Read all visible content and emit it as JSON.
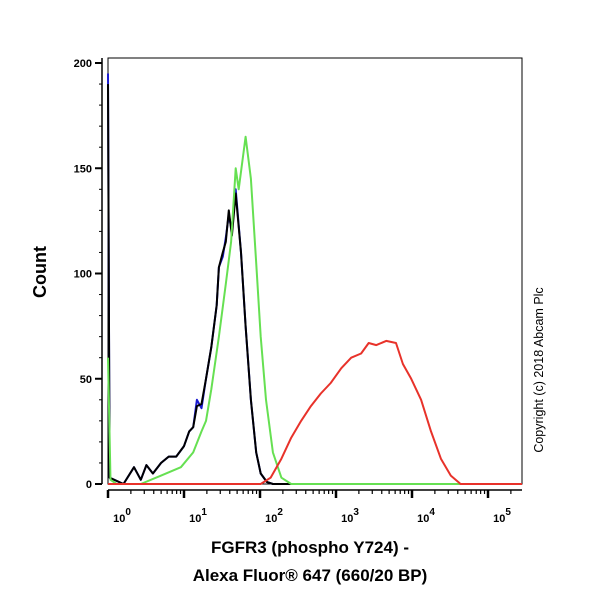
{
  "chart_data": {
    "type": "line",
    "title": "",
    "xlabel_lines": [
      "FGFR3 (phospho Y724) -",
      "Alexa Fluor® 647 (660/20 BP)"
    ],
    "ylabel": "Count",
    "x_scale": "log",
    "xlim": [
      1,
      282000
    ],
    "ylim": [
      0,
      200
    ],
    "x_ticks": [
      {
        "base": "10",
        "exp": "0",
        "value": 1
      },
      {
        "base": "10",
        "exp": "1",
        "value": 10
      },
      {
        "base": "10",
        "exp": "2",
        "value": 100
      },
      {
        "base": "10",
        "exp": "3",
        "value": 1000
      },
      {
        "base": "10",
        "exp": "4",
        "value": 10000
      },
      {
        "base": "10",
        "exp": "5",
        "value": 100000
      }
    ],
    "y_ticks": [
      "0",
      "50",
      "100",
      "150",
      "200"
    ],
    "grid": false,
    "annotation": "Copyright (c) 2018 Abcam Plc",
    "series": [
      {
        "color": "#1a1ad0",
        "points": [
          [
            1,
            195
          ],
          [
            1.05,
            3
          ],
          [
            1.6,
            0
          ],
          [
            2.2,
            8
          ],
          [
            2.7,
            2
          ],
          [
            3.2,
            9
          ],
          [
            3.9,
            5
          ],
          [
            5,
            10
          ],
          [
            6.3,
            13
          ],
          [
            7.9,
            13
          ],
          [
            10,
            18
          ],
          [
            11.7,
            25
          ],
          [
            13.2,
            27
          ],
          [
            14.8,
            40
          ],
          [
            17,
            36
          ],
          [
            19.5,
            50
          ],
          [
            22.9,
            65
          ],
          [
            26.9,
            85
          ],
          [
            28.8,
            103
          ],
          [
            32.4,
            108
          ],
          [
            35.5,
            117
          ],
          [
            38.9,
            128
          ],
          [
            42.7,
            120
          ],
          [
            47.9,
            140
          ],
          [
            56.2,
            110
          ],
          [
            64.6,
            75
          ],
          [
            75.9,
            40
          ],
          [
            89.1,
            15
          ],
          [
            102,
            5
          ],
          [
            123,
            1
          ],
          [
            148,
            0
          ],
          [
            282000,
            0
          ]
        ]
      },
      {
        "color": "#000000",
        "points": [
          [
            1,
            190
          ],
          [
            1.05,
            3
          ],
          [
            1.6,
            0
          ],
          [
            2.2,
            8
          ],
          [
            2.7,
            2
          ],
          [
            3.2,
            9
          ],
          [
            3.9,
            5
          ],
          [
            5,
            10
          ],
          [
            6.3,
            13
          ],
          [
            7.9,
            13
          ],
          [
            10,
            18
          ],
          [
            11.7,
            25
          ],
          [
            13.2,
            27
          ],
          [
            14.8,
            37
          ],
          [
            17,
            38
          ],
          [
            19.5,
            50
          ],
          [
            22.9,
            65
          ],
          [
            26.9,
            85
          ],
          [
            28.8,
            103
          ],
          [
            32.4,
            110
          ],
          [
            35.5,
            115
          ],
          [
            38.9,
            130
          ],
          [
            42.7,
            118
          ],
          [
            47.9,
            138
          ],
          [
            56.2,
            110
          ],
          [
            64.6,
            75
          ],
          [
            75.9,
            40
          ],
          [
            89.1,
            15
          ],
          [
            102,
            5
          ],
          [
            123,
            1
          ],
          [
            148,
            0
          ],
          [
            282000,
            0
          ]
        ]
      },
      {
        "color": "#66e052",
        "points": [
          [
            1,
            60
          ],
          [
            1.08,
            2
          ],
          [
            1.3,
            0
          ],
          [
            2.7,
            0
          ],
          [
            5,
            4
          ],
          [
            9.1,
            8
          ],
          [
            13.2,
            15
          ],
          [
            17,
            25
          ],
          [
            19.5,
            30
          ],
          [
            22.9,
            45
          ],
          [
            28.8,
            70
          ],
          [
            35.5,
            95
          ],
          [
            41.7,
            115
          ],
          [
            47.9,
            150
          ],
          [
            52.5,
            140
          ],
          [
            64.6,
            165
          ],
          [
            75.9,
            145
          ],
          [
            89.1,
            105
          ],
          [
            102,
            70
          ],
          [
            120,
            40
          ],
          [
            148,
            15
          ],
          [
            191,
            3
          ],
          [
            257,
            0
          ],
          [
            282000,
            0
          ]
        ]
      },
      {
        "color": "#e8322a",
        "points": [
          [
            1,
            0
          ],
          [
            102,
            0
          ],
          [
            138,
            3
          ],
          [
            191,
            12
          ],
          [
            257,
            22
          ],
          [
            347,
            30
          ],
          [
            468,
            37
          ],
          [
            631,
            43
          ],
          [
            851,
            48
          ],
          [
            1175,
            55
          ],
          [
            1585,
            60
          ],
          [
            2138,
            62
          ],
          [
            2692,
            67
          ],
          [
            3388,
            66
          ],
          [
            4571,
            68
          ],
          [
            6166,
            67
          ],
          [
            7586,
            57
          ],
          [
            9772,
            50
          ],
          [
            13183,
            40
          ],
          [
            17783,
            25
          ],
          [
            23988,
            12
          ],
          [
            32359,
            4
          ],
          [
            43652,
            0
          ],
          [
            282000,
            0
          ]
        ]
      }
    ]
  }
}
